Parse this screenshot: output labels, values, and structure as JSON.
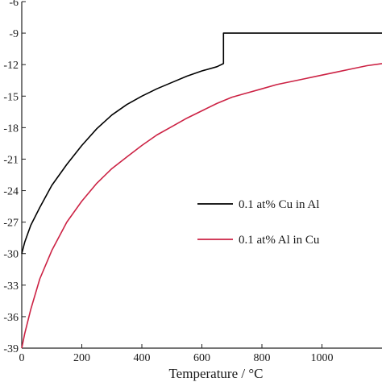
{
  "chart_data": {
    "type": "line",
    "title": "",
    "xlabel": "Temperature / °C",
    "ylabel": "",
    "xlim": [
      0,
      1200
    ],
    "ylim": [
      -39,
      -6
    ],
    "x_ticks": [
      0,
      200,
      400,
      600,
      800,
      1000
    ],
    "y_ticks": [
      -6,
      -9,
      -12,
      -15,
      -18,
      -21,
      -24,
      -27,
      -30,
      -33,
      -36,
      -39
    ],
    "x_tick_labels": [
      "0",
      "200",
      "400",
      "600",
      "800",
      "1000"
    ],
    "y_tick_labels": [
      "-6",
      "-9",
      "-12",
      "-15",
      "-18",
      "-21",
      "-24",
      "-27",
      "-30",
      "-33",
      "-36",
      "-39"
    ],
    "grid": false,
    "legend_position": "right-middle",
    "series": [
      {
        "name": "0.1 at% Cu in Al",
        "color": "#000000",
        "x": [
          0,
          10,
          30,
          60,
          100,
          150,
          200,
          250,
          300,
          350,
          400,
          450,
          500,
          550,
          600,
          650,
          672,
          672,
          700,
          800,
          900,
          1000,
          1100,
          1200
        ],
        "y": [
          -30.0,
          -28.9,
          -27.3,
          -25.6,
          -23.5,
          -21.5,
          -19.7,
          -18.1,
          -16.8,
          -15.8,
          -15.0,
          -14.3,
          -13.7,
          -13.1,
          -12.6,
          -12.2,
          -11.9,
          -9.0,
          -9.0,
          -9.0,
          -9.0,
          -9.0,
          -9.0,
          -9.0
        ]
      },
      {
        "name": "0.1 at% Al in Cu",
        "color": "#cc2244",
        "x": [
          0,
          10,
          30,
          60,
          100,
          150,
          200,
          250,
          300,
          350,
          400,
          450,
          500,
          550,
          600,
          650,
          700,
          750,
          800,
          850,
          900,
          950,
          1000,
          1050,
          1100,
          1150,
          1200
        ],
        "y": [
          -39.0,
          -37.6,
          -35.3,
          -32.4,
          -29.7,
          -27.0,
          -25.0,
          -23.3,
          -21.9,
          -20.8,
          -19.7,
          -18.7,
          -17.9,
          -17.1,
          -16.4,
          -15.7,
          -15.1,
          -14.7,
          -14.3,
          -13.9,
          -13.6,
          -13.3,
          -13.0,
          -12.7,
          -12.4,
          -12.1,
          -11.9
        ]
      }
    ]
  }
}
